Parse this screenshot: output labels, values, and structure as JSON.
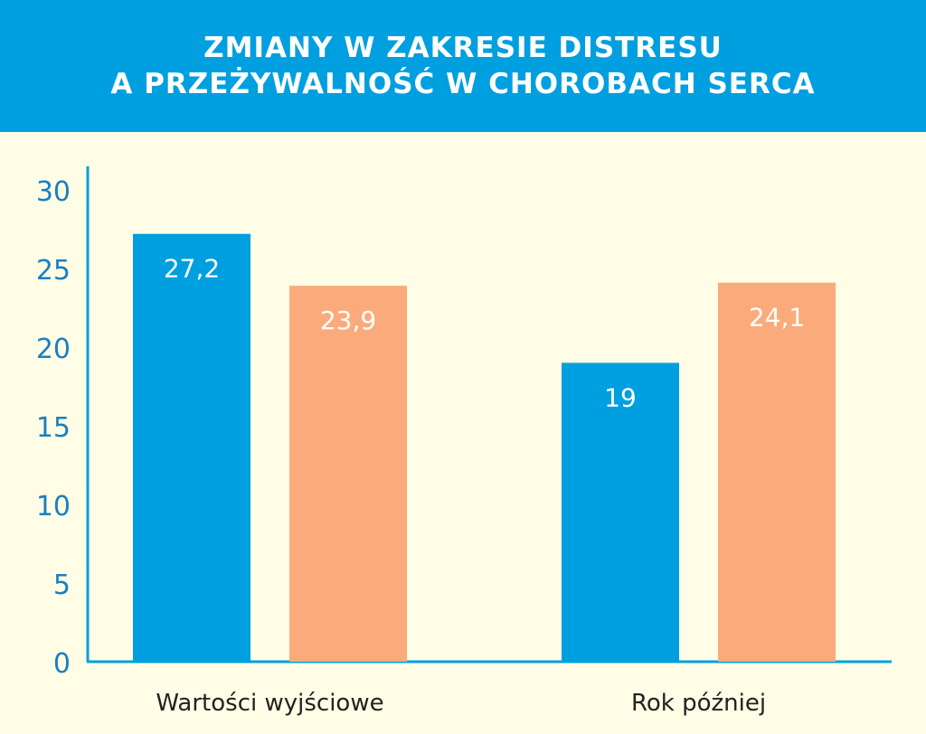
{
  "colors": {
    "header_bg": "#009fe0",
    "background": "#fffde6",
    "axis": "#009fe0",
    "tick_label": "#1a7fc1",
    "series_blue": "#009fe0",
    "series_orange": "#fbab7b",
    "data_label": "#ffffff",
    "category_label": "#222222"
  },
  "chart_data": {
    "type": "bar",
    "title_lines": [
      "ZMIANY W ZAKRESIE DISTRESU",
      "A PRZEŻYWALNOŚĆ W CHOROBACH SERCA"
    ],
    "categories": [
      "Wartości wyjściowe",
      "Rok później"
    ],
    "series": [
      {
        "values": [
          27.2,
          19
        ],
        "labels": [
          "27,2",
          "19"
        ],
        "color": "#009fe0"
      },
      {
        "values": [
          23.9,
          24.1
        ],
        "labels": [
          "23,9",
          "24,1"
        ],
        "color": "#fbab7b"
      }
    ],
    "ylim": [
      0,
      30
    ],
    "yticks": [
      0,
      5,
      10,
      15,
      20,
      25,
      30
    ],
    "xlabel": "",
    "ylabel": "",
    "grid": false,
    "legend": "none"
  }
}
